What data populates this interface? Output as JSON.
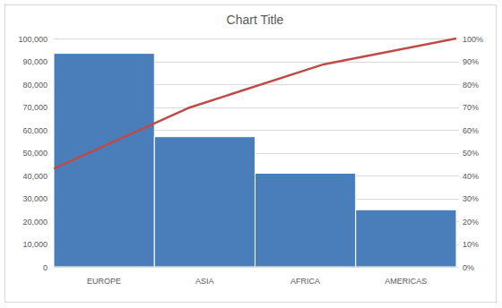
{
  "chart_data": {
    "type": "bar",
    "title": "Chart Title",
    "categories": [
      "EUROPE",
      "ASIA",
      "AFRICA",
      "AMERICAS"
    ],
    "series": [
      {
        "type": "bar",
        "color": "#4a7ebb",
        "values": [
          93500,
          57000,
          41000,
          25000
        ]
      },
      {
        "type": "line",
        "color": "#be4b48",
        "axis": "y2",
        "values": [
          43,
          69.5,
          88.5,
          100
        ]
      }
    ],
    "ylim": [
      0,
      100000
    ],
    "yticks": [
      0,
      {
        "value": 10000,
        "label": "10,000"
      },
      {
        "value": 20000,
        "label": "20,000"
      },
      {
        "value": 30000,
        "label": "30,000"
      },
      {
        "value": 40000,
        "label": "40,000"
      },
      {
        "value": 50000,
        "label": "50,000"
      },
      {
        "value": 60000,
        "label": "60,000"
      },
      {
        "value": 70000,
        "label": "70,000"
      },
      {
        "value": 80000,
        "label": "80,000"
      },
      {
        "value": 90000,
        "label": "90,000"
      },
      {
        "value": 100000,
        "label": "100,000"
      }
    ],
    "y2lim": [
      0,
      100
    ],
    "y2ticks": [
      {
        "value": 0,
        "label": "0%"
      },
      {
        "value": 10,
        "label": "10%"
      },
      {
        "value": 20,
        "label": "20%"
      },
      {
        "value": 30,
        "label": "30%"
      },
      {
        "value": 40,
        "label": "40%"
      },
      {
        "value": 50,
        "label": "50%"
      },
      {
        "value": 60,
        "label": "60%"
      },
      {
        "value": 70,
        "label": "70%"
      },
      {
        "value": 80,
        "label": "80%"
      },
      {
        "value": 90,
        "label": "90%"
      },
      {
        "value": 100,
        "label": "100%"
      }
    ],
    "grid": true
  }
}
